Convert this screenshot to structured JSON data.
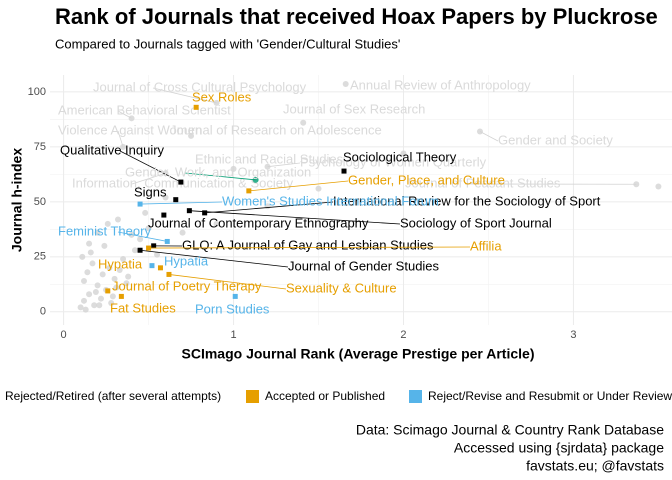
{
  "chart_data": {
    "type": "scatter",
    "title": "Rank of Journals that received Hoax Papers by Pluckrose",
    "subtitle": "Compared to Journals tagged with 'Gender/Cultural Studies'",
    "x_label": "SCImago Journal Rank (Average Prestige per Article)",
    "y_label": "Journal h-index",
    "caption": [
      "Data: Scimago Journal & Country Rank Database",
      "Accessed using {sjrdata} package",
      "favstats.eu; @favstats"
    ],
    "xlim": [
      -0.08,
      3.58
    ],
    "ylim": [
      -6,
      107.7
    ],
    "xticks": [
      0,
      1,
      2,
      3
    ],
    "yticks": [
      0,
      25,
      50,
      75,
      100
    ],
    "grid": true,
    "series": [
      {
        "name": "Rejected/Retired (after several attempts)",
        "color": "#000000",
        "x": [
          0.69,
          1.65,
          0.66,
          0.83,
          0.59,
          0.74,
          0.53,
          0.45
        ],
        "values": [
          59,
          64,
          51,
          45,
          44,
          46,
          30,
          28
        ],
        "labels": [
          "Qualitative Inquiry",
          "Sociological Theory",
          "Signs",
          "International Review for the Sociology of Sport",
          "Journal of Contemporary Ethnography",
          "Sociology of Sport Journal",
          "GLQ: A Journal of Gay and Lesbian Studies",
          "Journal of Gender Studies"
        ]
      },
      {
        "name": "Accepted or Published",
        "color": "#E69F00",
        "x": [
          0.78,
          1.09,
          0.5,
          0.57,
          0.26,
          0.62,
          0.34
        ],
        "values": [
          93,
          55,
          29,
          20,
          9.5,
          17,
          7
        ],
        "labels": [
          "Sex Roles",
          "Gender, Place, and Culture",
          "Affilia",
          "Hypatia",
          "Journal of Poetry Therapy",
          "Sexuality & Culture",
          "Fat Studies"
        ]
      },
      {
        "name": "Reject/Revise and Resubmit or Under Review",
        "color": "#56B4E9",
        "x": [
          0.61,
          0.52,
          0.45,
          1.01
        ],
        "values": [
          32,
          21,
          49,
          7
        ],
        "labels": [
          "Feminist Theory",
          "Hypatia",
          "Women's Studies International Forum",
          "Porn Studies"
        ]
      },
      {
        "color": "#009E73",
        "x": [
          1.13
        ],
        "values": [
          60
        ],
        "labels": [
          "Gender, Work, and Organization"
        ]
      },
      {
        "color": "#d3d3d3",
        "x": [
          0.9,
          1.66,
          0.4,
          1.41,
          0.35,
          0.75,
          2.45,
          1.0,
          1.2,
          3.37,
          0.6
        ],
        "values": [
          95,
          103.6,
          88,
          86,
          75,
          80,
          82,
          65,
          66,
          58,
          63
        ],
        "labels": [
          "Journal of Cross Cultural Psychology",
          "Annual Review of Anthropology",
          "American Behavioral Scientist",
          "Journal of Sex Research",
          "Violence Against Women",
          "Journal of Research on Adolescence",
          "Gender and Society",
          "Ethnic and Racial Studies",
          "Psychology of Women Quarterly",
          "Journal of Peasant Studies",
          "Information, Communication & Society"
        ]
      },
      {
        "color": "#d3d3d3",
        "x": [
          0.1,
          0.12,
          0.15,
          0.18,
          0.2,
          0.22,
          0.25,
          0.28,
          0.3,
          0.12,
          0.14,
          0.17,
          0.19,
          0.23,
          0.27,
          0.31,
          0.35,
          0.38,
          0.42,
          0.11,
          0.13,
          0.16,
          0.21,
          0.24,
          0.29,
          0.33,
          0.37,
          0.4,
          0.45,
          0.5,
          0.55,
          0.15,
          0.2,
          0.26,
          0.32,
          0.48,
          0.6,
          0.7,
          0.9,
          1.2,
          1.5,
          2.0,
          3.5
        ],
        "values": [
          2,
          5,
          8,
          3,
          12,
          6,
          10,
          4,
          15,
          14,
          18,
          22,
          9,
          17,
          20,
          11,
          24,
          16,
          28,
          25,
          1,
          27,
          3,
          30,
          7,
          19,
          13,
          35,
          33,
          38,
          26,
          31,
          36,
          40,
          42,
          45,
          52,
          36,
          40,
          48,
          56,
          72,
          57
        ]
      }
    ]
  }
}
